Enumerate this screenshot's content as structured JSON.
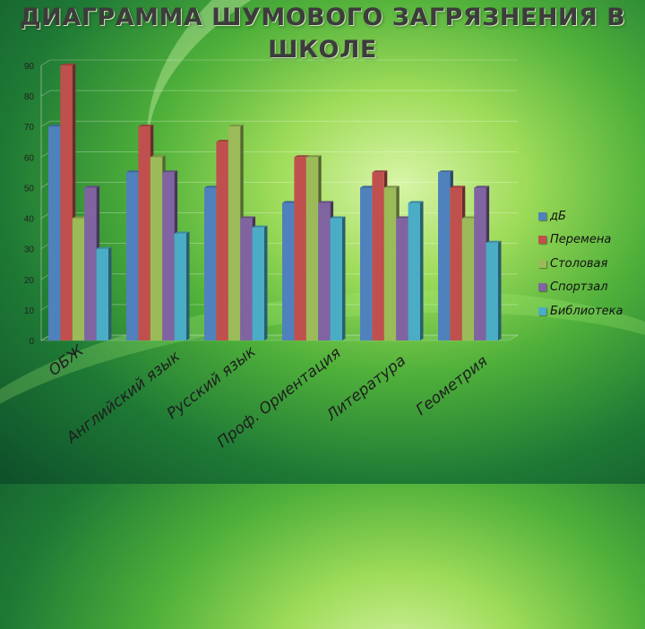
{
  "title": "ДИАГРАММА ШУМОВОГО ЗАГРЯЗНЕНИЯ В ШКОЛЕ",
  "chart_data": {
    "type": "bar",
    "categories": [
      "ОБЖ",
      "Английский язык",
      "Русский язык",
      "Проф. Ориентация",
      "Литература",
      "Геометрия"
    ],
    "series": [
      {
        "name": "дБ",
        "color": "#4f81bd",
        "values": [
          70,
          55,
          50,
          45,
          50,
          55
        ]
      },
      {
        "name": "Перемена",
        "color": "#c0504d",
        "values": [
          90,
          70,
          65,
          60,
          55,
          50
        ]
      },
      {
        "name": "Столовая",
        "color": "#9bbb59",
        "values": [
          40,
          60,
          70,
          60,
          50,
          40
        ]
      },
      {
        "name": "Спортзал",
        "color": "#8064a2",
        "values": [
          50,
          55,
          40,
          45,
          40,
          50
        ]
      },
      {
        "name": "Библиотека",
        "color": "#4bacc6",
        "values": [
          30,
          35,
          37,
          40,
          45,
          32
        ]
      }
    ],
    "yticks": [
      "0",
      "10",
      "20",
      "30",
      "40",
      "50",
      "60",
      "70",
      "80",
      "90"
    ],
    "ylim": [
      0,
      90
    ],
    "grid": true,
    "legend_position": "right"
  }
}
